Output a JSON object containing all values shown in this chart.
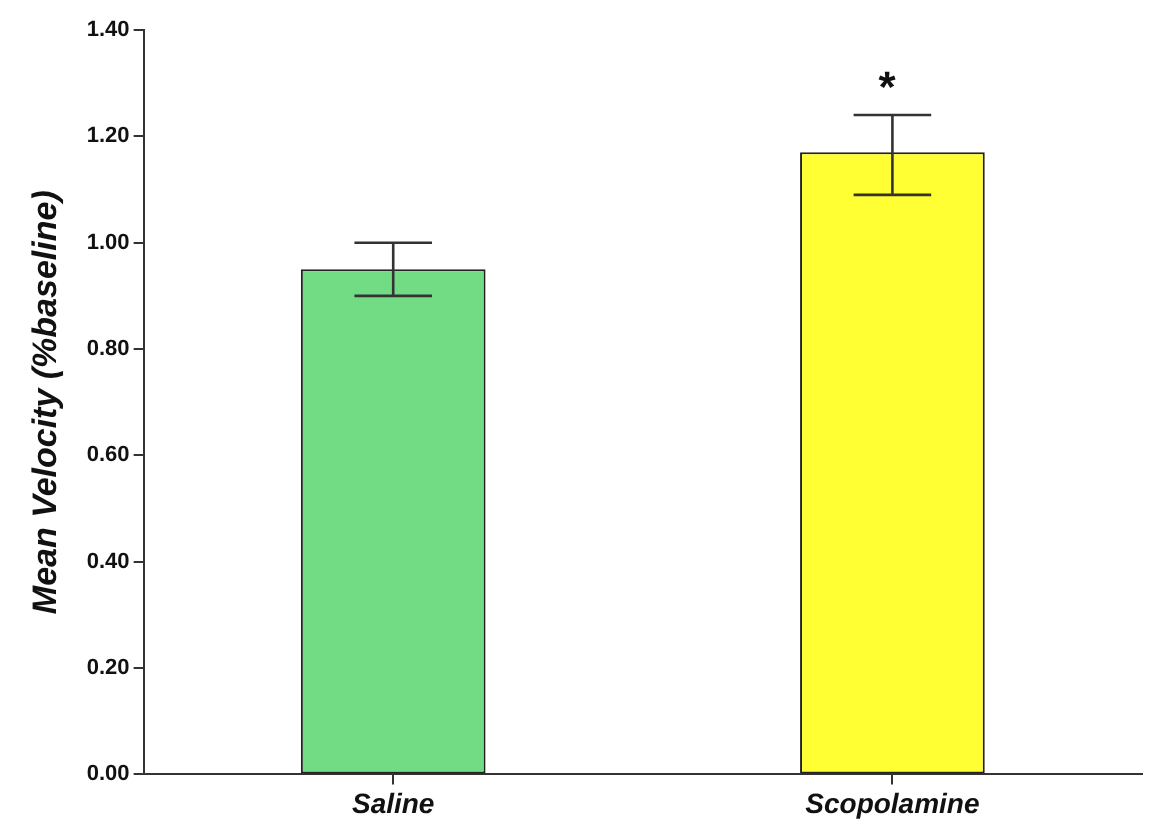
{
  "chart_data": {
    "type": "bar",
    "ylabel": "Mean Velocity (%baseline)",
    "categories": [
      "Saline",
      "Scopolamine"
    ],
    "values": [
      0.95,
      1.17
    ],
    "colors": [
      "#72dc84",
      "#ffff33"
    ],
    "errors": [
      [
        0.9,
        1.0
      ],
      [
        1.09,
        1.24
      ]
    ],
    "ylim": [
      0,
      1.4
    ],
    "yticks": [
      {
        "value": 0,
        "label": "0.00"
      },
      {
        "value": 0.2,
        "label": "0.20"
      },
      {
        "value": 0.4,
        "label": "0.40"
      },
      {
        "value": 0.6,
        "label": "0.60"
      },
      {
        "value": 0.8,
        "label": "0.80"
      },
      {
        "value": 1.0,
        "label": "1.00"
      },
      {
        "value": 1.2,
        "label": "1.20"
      },
      {
        "value": 1.4,
        "label": "1.40"
      }
    ],
    "annotations": [
      "*"
    ],
    "grid": false,
    "legend": false
  }
}
